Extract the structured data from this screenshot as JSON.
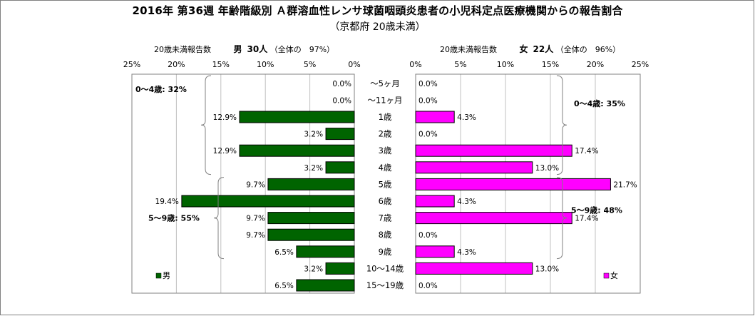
{
  "title": "2016年 第36週 年齢階級別 Ａ群溶血性レンサ球菌咽頭炎患者の小児科定点医療機関からの報告割合",
  "subtitle": "（京都府 20歳未満）",
  "colors": {
    "male": "#006400",
    "female": "#ff00ff",
    "frame": "#808080",
    "grid": "#c0c0c0"
  },
  "chart_data": {
    "type": "bar",
    "orientation": "horizontal-population-pyramid",
    "unit": "%",
    "categories": [
      "〜5ヶ月",
      "〜11ヶ月",
      "1歳",
      "2歳",
      "3歳",
      "4歳",
      "5歳",
      "6歳",
      "7歳",
      "8歳",
      "9歳",
      "10〜14歳",
      "15〜19歳"
    ],
    "x_ticks": [
      25,
      20,
      15,
      10,
      5,
      0
    ],
    "x_tick_labels": [
      "25%",
      "20%",
      "15%",
      "10%",
      "5%",
      "0%"
    ],
    "x_tick_labels_right": [
      "0%",
      "5%",
      "10%",
      "15%",
      "20%",
      "25%"
    ],
    "xlim": [
      0,
      25
    ],
    "grid": true,
    "series": [
      {
        "name": "男",
        "side": "left",
        "header_label": "20歳未満報告数",
        "header_sex": "男",
        "header_count": "30人",
        "header_ratio": "（全体の　97%）",
        "legend": "男",
        "values": [
          0.0,
          0.0,
          12.9,
          3.2,
          12.9,
          3.2,
          9.7,
          19.4,
          9.7,
          9.7,
          6.5,
          3.2,
          6.5
        ],
        "value_labels": [
          "0.0%",
          "0.0%",
          "12.9%",
          "3.2%",
          "12.9%",
          "3.2%",
          "9.7%",
          "19.4%",
          "9.7%",
          "9.7%",
          "6.5%",
          "3.2%",
          "6.5%"
        ],
        "groups": [
          {
            "label": "0〜4歳: 32%",
            "from": 0,
            "to": 5
          },
          {
            "label": "5〜9歳: 55%",
            "from": 6,
            "to": 10
          }
        ]
      },
      {
        "name": "女",
        "side": "right",
        "header_label": "20歳未満報告数",
        "header_sex": "女",
        "header_count": "22人",
        "header_ratio": "（全体の　96%）",
        "legend": "女",
        "values": [
          0.0,
          0.0,
          4.3,
          0.0,
          17.4,
          13.0,
          21.7,
          4.3,
          17.4,
          0.0,
          4.3,
          13.0,
          0.0
        ],
        "value_labels": [
          "0.0%",
          "0.0%",
          "4.3%",
          "0.0%",
          "17.4%",
          "13.0%",
          "21.7%",
          "4.3%",
          "17.4%",
          "0.0%",
          "4.3%",
          "13.0%",
          "0.0%"
        ],
        "groups": [
          {
            "label": "0〜4歳: 35%",
            "from": 0,
            "to": 5
          },
          {
            "label": "5〜9歳: 48%",
            "from": 6,
            "to": 10
          }
        ]
      }
    ]
  }
}
